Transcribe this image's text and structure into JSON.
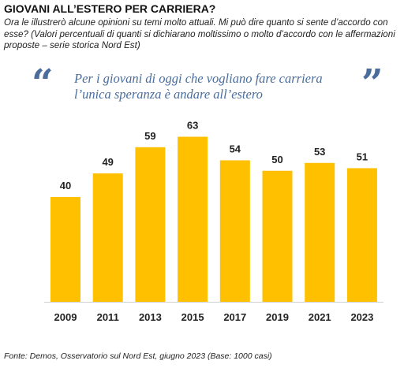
{
  "header": {
    "title": "GIOVANI ALL’ESTERO PER CARRIERA?",
    "subtitle": "Ora le illustrerò alcune opinioni su temi molto attuali. Mi può dire quanto si sente d’accordo con esse? (Valori percentuali di quanti si dichiarano moltissimo o molto d’accordo con le affermazioni proposte – serie storica Nord Est)"
  },
  "quote": {
    "open_mark": "“",
    "close_mark": "”",
    "line1": "Per i giovani di oggi che vogliano fare carriera",
    "line2": "l’unica speranza è andare all’estero"
  },
  "chart_data": {
    "type": "bar",
    "categories": [
      "2009",
      "2011",
      "2013",
      "2015",
      "2017",
      "2019",
      "2021",
      "2023"
    ],
    "values": [
      40,
      49,
      59,
      63,
      54,
      50,
      53,
      51
    ],
    "ylim": [
      0,
      70
    ],
    "grid": false,
    "bar_color": "#FFC000",
    "label_color": "#222222"
  },
  "footer": {
    "source": "Fonte: Demos, Osservatorio sul Nord Est, giugno 2023 (Base: 1000 casi)"
  }
}
